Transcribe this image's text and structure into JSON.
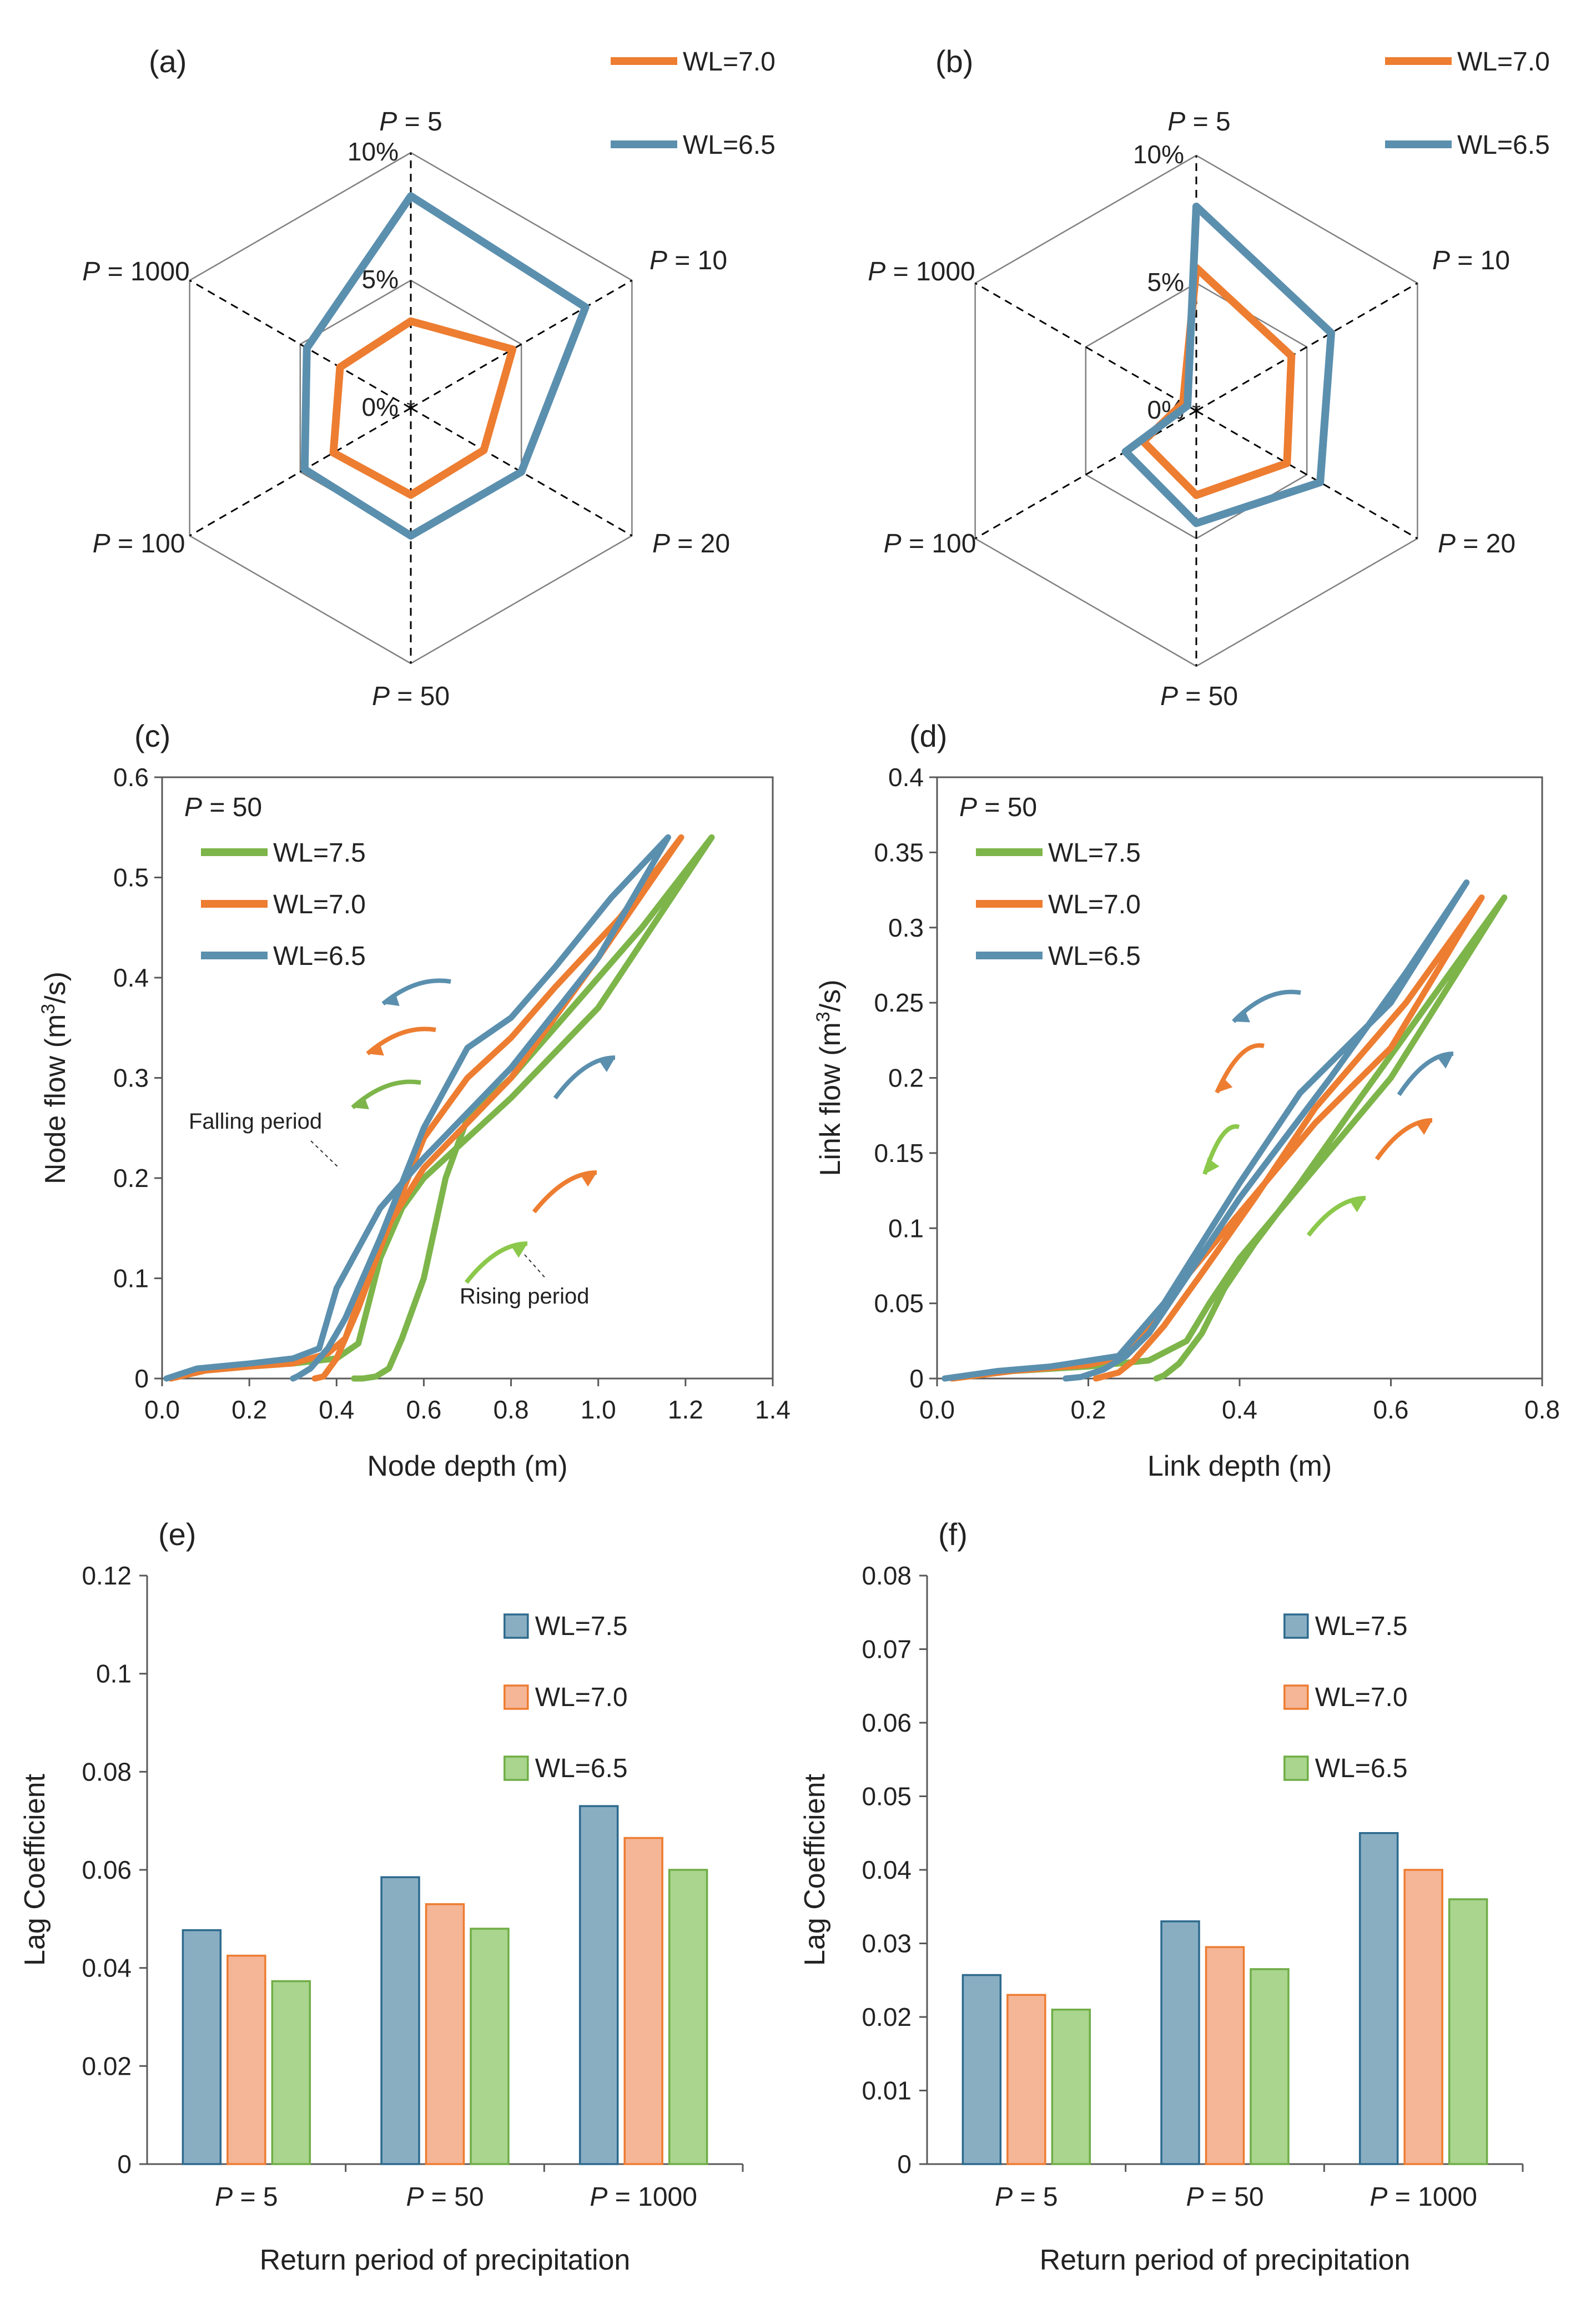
{
  "colors": {
    "wl75_line": "#7DB54A",
    "wl70_line": "#ED7D31",
    "wl65_line": "#5B8FAE",
    "arrow_green": "#8CC84B",
    "bar_wl75_fill": "#89AEC2",
    "bar_wl75_edge": "#2E6A8E",
    "bar_wl70_fill": "#F5B597",
    "bar_wl70_edge": "#ED7D31",
    "bar_wl65_fill": "#A9D58E",
    "bar_wl65_edge": "#70AD47",
    "grid": "#808080",
    "spoke": "#000000"
  },
  "chart_data": [
    {
      "id": "a",
      "panel_label": "(a)",
      "type": "radar",
      "axes": [
        "P = 5",
        "P = 10",
        "P = 20",
        "P = 50",
        "P = 100",
        "P = 1000"
      ],
      "axis_prefix": "P",
      "axis_values": [
        "= 5",
        "= 10",
        "= 20",
        "= 50",
        "= 100",
        "= 1000"
      ],
      "rings": [
        0,
        5,
        10
      ],
      "ring_labels": [
        "0%",
        "5%",
        "10%"
      ],
      "rmax": 10,
      "legend": [
        "WL=7.0",
        "WL=6.5"
      ],
      "series": [
        {
          "name": "WL=7.0",
          "values": [
            3.4,
            4.6,
            3.3,
            3.4,
            3.5,
            3.2
          ]
        },
        {
          "name": "WL=6.5",
          "values": [
            8.3,
            7.9,
            5.0,
            5.0,
            4.8,
            4.7
          ]
        }
      ]
    },
    {
      "id": "b",
      "panel_label": "(b)",
      "type": "radar",
      "axes": [
        "P = 5",
        "P = 10",
        "P = 20",
        "P = 50",
        "P = 100",
        "P = 1000"
      ],
      "axis_prefix": "P",
      "axis_values": [
        "= 5",
        "= 10",
        "= 20",
        "= 50",
        "= 100",
        "= 1000"
      ],
      "rings": [
        0,
        5,
        10
      ],
      "ring_labels": [
        "0%",
        "5%",
        "10%"
      ],
      "rmax": 10,
      "legend": [
        "WL=7.0",
        "WL=6.5"
      ],
      "series": [
        {
          "name": "WL=7.0",
          "values": [
            5.6,
            4.3,
            4.1,
            3.3,
            2.4,
            0.6
          ]
        },
        {
          "name": "WL=6.5",
          "values": [
            8.0,
            6.1,
            5.6,
            4.4,
            3.2,
            0.4
          ]
        }
      ]
    },
    {
      "id": "c",
      "panel_label": "(c)",
      "type": "line",
      "xlabel": "Node depth (m)",
      "ylabel": "Node flow (m3/s)",
      "ylabel_parts": [
        "Node flow (m",
        "3",
        "/s)"
      ],
      "xlim": [
        0,
        1.4
      ],
      "ylim": [
        0,
        0.6
      ],
      "xticks": [
        0,
        0.2,
        0.4,
        0.6,
        0.8,
        1.0,
        1.2,
        1.4
      ],
      "xtick_labels": [
        "0.0",
        "0.2",
        "0.4",
        "0.6",
        "0.8",
        "1.0",
        "1.2",
        "1.4"
      ],
      "yticks": [
        0,
        0.1,
        0.2,
        0.3,
        0.4,
        0.5,
        0.6
      ],
      "ytick_labels": [
        "0",
        "0.1",
        "0.2",
        "0.3",
        "0.4",
        "0.5",
        "0.6"
      ],
      "condition": "P = 50",
      "legend": [
        "WL=7.5",
        "WL=7.0",
        "WL=6.5"
      ],
      "annotations": [
        "Falling period",
        "Rising period"
      ],
      "series": [
        {
          "name": "WL=7.5",
          "x": [
            0.02,
            0.1,
            0.2,
            0.3,
            0.4,
            0.45,
            0.5,
            0.55,
            0.6,
            0.8,
            1.0,
            1.26,
            1.1,
            0.9,
            0.8,
            0.7,
            0.65,
            0.6,
            0.55,
            0.52,
            0.49,
            0.46,
            0.44
          ],
          "y": [
            0.0,
            0.008,
            0.012,
            0.015,
            0.02,
            0.035,
            0.12,
            0.17,
            0.2,
            0.28,
            0.37,
            0.54,
            0.45,
            0.35,
            0.3,
            0.26,
            0.2,
            0.1,
            0.04,
            0.01,
            0.002,
            0.0,
            0.0
          ]
        },
        {
          "name": "WL=7.0",
          "x": [
            0.02,
            0.1,
            0.2,
            0.3,
            0.38,
            0.42,
            0.5,
            0.6,
            0.8,
            1.0,
            1.19,
            1.05,
            0.9,
            0.8,
            0.7,
            0.6,
            0.5,
            0.45,
            0.4,
            0.37,
            0.35
          ],
          "y": [
            0.0,
            0.008,
            0.012,
            0.015,
            0.025,
            0.04,
            0.14,
            0.21,
            0.3,
            0.42,
            0.54,
            0.46,
            0.39,
            0.34,
            0.3,
            0.24,
            0.13,
            0.07,
            0.02,
            0.002,
            0.0
          ]
        },
        {
          "name": "WL=6.5",
          "x": [
            0.01,
            0.08,
            0.2,
            0.3,
            0.36,
            0.4,
            0.5,
            0.6,
            0.8,
            1.0,
            1.16,
            1.03,
            0.9,
            0.8,
            0.7,
            0.6,
            0.5,
            0.42,
            0.38,
            0.34,
            0.31,
            0.3
          ],
          "y": [
            0.0,
            0.01,
            0.015,
            0.02,
            0.03,
            0.09,
            0.17,
            0.22,
            0.31,
            0.42,
            0.54,
            0.48,
            0.41,
            0.36,
            0.33,
            0.25,
            0.14,
            0.06,
            0.03,
            0.01,
            0.002,
            0.0
          ]
        }
      ]
    },
    {
      "id": "d",
      "panel_label": "(d)",
      "type": "line",
      "xlabel": "Link depth (m)",
      "ylabel": "Link flow (m3/s)",
      "ylabel_parts": [
        "Link flow (m",
        "3",
        "/s)"
      ],
      "xlim": [
        0,
        0.8
      ],
      "ylim": [
        0,
        0.4
      ],
      "xticks": [
        0,
        0.2,
        0.4,
        0.6,
        0.8
      ],
      "xtick_labels": [
        "0.0",
        "0.2",
        "0.4",
        "0.6",
        "0.8"
      ],
      "yticks": [
        0,
        0.05,
        0.1,
        0.15,
        0.2,
        0.25,
        0.3,
        0.35,
        0.4
      ],
      "ytick_labels": [
        "0",
        "0.05",
        "0.1",
        "0.15",
        "0.2",
        "0.25",
        "0.3",
        "0.35",
        "0.4"
      ],
      "condition": "P = 50",
      "legend": [
        "WL=7.5",
        "WL=7.0",
        "WL=6.5"
      ],
      "series": [
        {
          "name": "WL=7.5",
          "x": [
            0.02,
            0.1,
            0.2,
            0.28,
            0.33,
            0.36,
            0.4,
            0.5,
            0.6,
            0.75,
            0.65,
            0.55,
            0.48,
            0.42,
            0.38,
            0.35,
            0.32,
            0.3,
            0.29
          ],
          "y": [
            0.0,
            0.005,
            0.008,
            0.012,
            0.025,
            0.05,
            0.08,
            0.14,
            0.2,
            0.32,
            0.25,
            0.18,
            0.13,
            0.09,
            0.06,
            0.03,
            0.01,
            0.002,
            0.0
          ]
        },
        {
          "name": "WL=7.0",
          "x": [
            0.02,
            0.1,
            0.2,
            0.25,
            0.3,
            0.4,
            0.5,
            0.6,
            0.72,
            0.62,
            0.5,
            0.42,
            0.35,
            0.3,
            0.26,
            0.24,
            0.21
          ],
          "y": [
            0.0,
            0.005,
            0.009,
            0.015,
            0.05,
            0.11,
            0.17,
            0.22,
            0.32,
            0.25,
            0.18,
            0.12,
            0.07,
            0.035,
            0.012,
            0.004,
            0.0
          ]
        },
        {
          "name": "WL=6.5",
          "x": [
            0.01,
            0.08,
            0.15,
            0.24,
            0.3,
            0.4,
            0.48,
            0.6,
            0.7,
            0.62,
            0.52,
            0.46,
            0.4,
            0.32,
            0.28,
            0.25,
            0.22,
            0.19,
            0.17
          ],
          "y": [
            0.0,
            0.005,
            0.008,
            0.015,
            0.05,
            0.13,
            0.19,
            0.25,
            0.33,
            0.27,
            0.2,
            0.16,
            0.12,
            0.06,
            0.03,
            0.015,
            0.006,
            0.001,
            0.0
          ]
        }
      ]
    },
    {
      "id": "e",
      "panel_label": "(e)",
      "type": "bar",
      "xlabel": "Return period of precipitation",
      "ylabel": "Lag Coefficient",
      "categories": [
        "P = 5",
        "P = 50",
        "P = 1000"
      ],
      "cat_values": [
        "= 5",
        "= 50",
        "= 1000"
      ],
      "ylim": [
        0,
        0.12
      ],
      "yticks": [
        0,
        0.02,
        0.04,
        0.06,
        0.08,
        0.1,
        0.12
      ],
      "ytick_labels": [
        "0",
        "0.02",
        "0.04",
        "0.06",
        "0.08",
        "0.1",
        "0.12"
      ],
      "legend": [
        "WL=7.5",
        "WL=7.0",
        "WL=6.5"
      ],
      "series": [
        {
          "name": "WL=7.5",
          "values": [
            0.0477,
            0.0585,
            0.073
          ]
        },
        {
          "name": "WL=7.0",
          "values": [
            0.0425,
            0.053,
            0.0665
          ]
        },
        {
          "name": "WL=6.5",
          "values": [
            0.0373,
            0.048,
            0.06
          ]
        }
      ]
    },
    {
      "id": "f",
      "panel_label": "(f)",
      "type": "bar",
      "xlabel": "Return period of precipitation",
      "ylabel": "Lag Coefficient",
      "categories": [
        "P = 5",
        "P = 50",
        "P = 1000"
      ],
      "cat_values": [
        "= 5",
        "= 50",
        "= 1000"
      ],
      "ylim": [
        0,
        0.08
      ],
      "yticks": [
        0,
        0.01,
        0.02,
        0.03,
        0.04,
        0.05,
        0.06,
        0.07,
        0.08
      ],
      "ytick_labels": [
        "0",
        "0.01",
        "0.02",
        "0.03",
        "0.04",
        "0.05",
        "0.06",
        "0.07",
        "0.08"
      ],
      "legend": [
        "WL=7.5",
        "WL=7.0",
        "WL=6.5"
      ],
      "series": [
        {
          "name": "WL=7.5",
          "values": [
            0.0257,
            0.033,
            0.045
          ]
        },
        {
          "name": "WL=7.0",
          "values": [
            0.023,
            0.0295,
            0.04
          ]
        },
        {
          "name": "WL=6.5",
          "values": [
            0.021,
            0.0265,
            0.036
          ]
        }
      ]
    }
  ]
}
